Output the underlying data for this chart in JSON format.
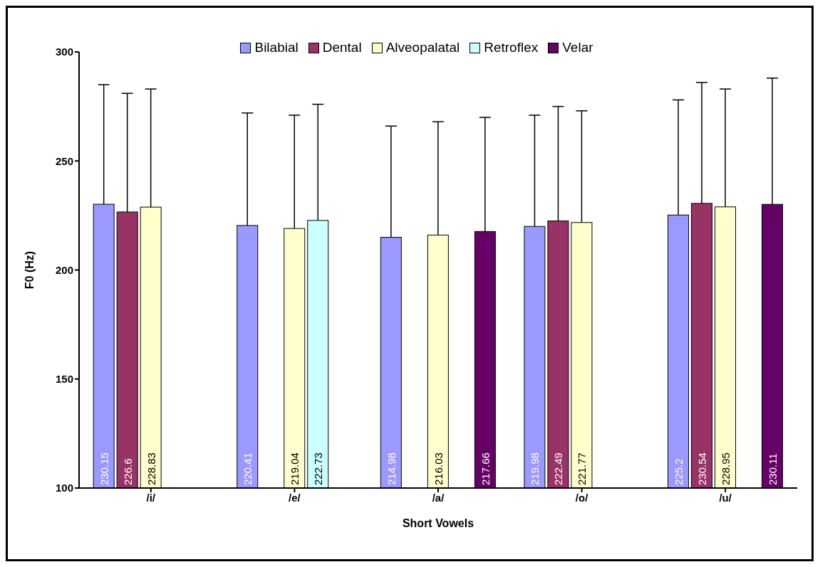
{
  "chart_data": {
    "type": "bar",
    "xlabel": "Short Vowels",
    "ylabel": "F0 (Hz)",
    "categories": [
      "/i/",
      "/e/",
      "/a/",
      "/o/",
      "/u/"
    ],
    "series": [
      {
        "name": "Bilabial",
        "color": "#9999ff",
        "values": [
          230.15,
          220.41,
          214.98,
          219.98,
          225.2
        ],
        "errors": [
          [
            230.15,
            285
          ],
          [
            220.41,
            272
          ],
          [
            214.98,
            266
          ],
          [
            219.98,
            271
          ],
          [
            225.2,
            278
          ]
        ]
      },
      {
        "name": "Dental",
        "color": "#993366",
        "values": [
          226.6,
          null,
          null,
          222.49,
          230.54
        ],
        "errors": [
          [
            226.6,
            281
          ],
          null,
          null,
          [
            222.49,
            275
          ],
          [
            230.54,
            286
          ]
        ]
      },
      {
        "name": "Alveopalatal",
        "color": "#ffffcc",
        "values": [
          228.83,
          219.04,
          216.03,
          221.77,
          228.95
        ],
        "errors": [
          [
            228.83,
            283
          ],
          [
            219.04,
            271
          ],
          [
            216.03,
            268
          ],
          [
            221.77,
            273
          ],
          [
            228.95,
            283
          ]
        ]
      },
      {
        "name": "Retroflex",
        "color": "#ccffff",
        "values": [
          null,
          222.73,
          null,
          null,
          null
        ],
        "errors": [
          null,
          [
            222.73,
            276
          ],
          null,
          null,
          null
        ]
      },
      {
        "name": "Velar",
        "color": "#660066",
        "values": [
          null,
          null,
          217.66,
          null,
          230.11
        ],
        "errors": [
          null,
          null,
          [
            217.66,
            270
          ],
          null,
          [
            230.11,
            288
          ]
        ]
      }
    ],
    "ylim": [
      100,
      300
    ],
    "yticks": [
      100,
      150,
      200,
      250,
      300
    ],
    "grid": false,
    "legend": "top",
    "data_labels": true
  }
}
